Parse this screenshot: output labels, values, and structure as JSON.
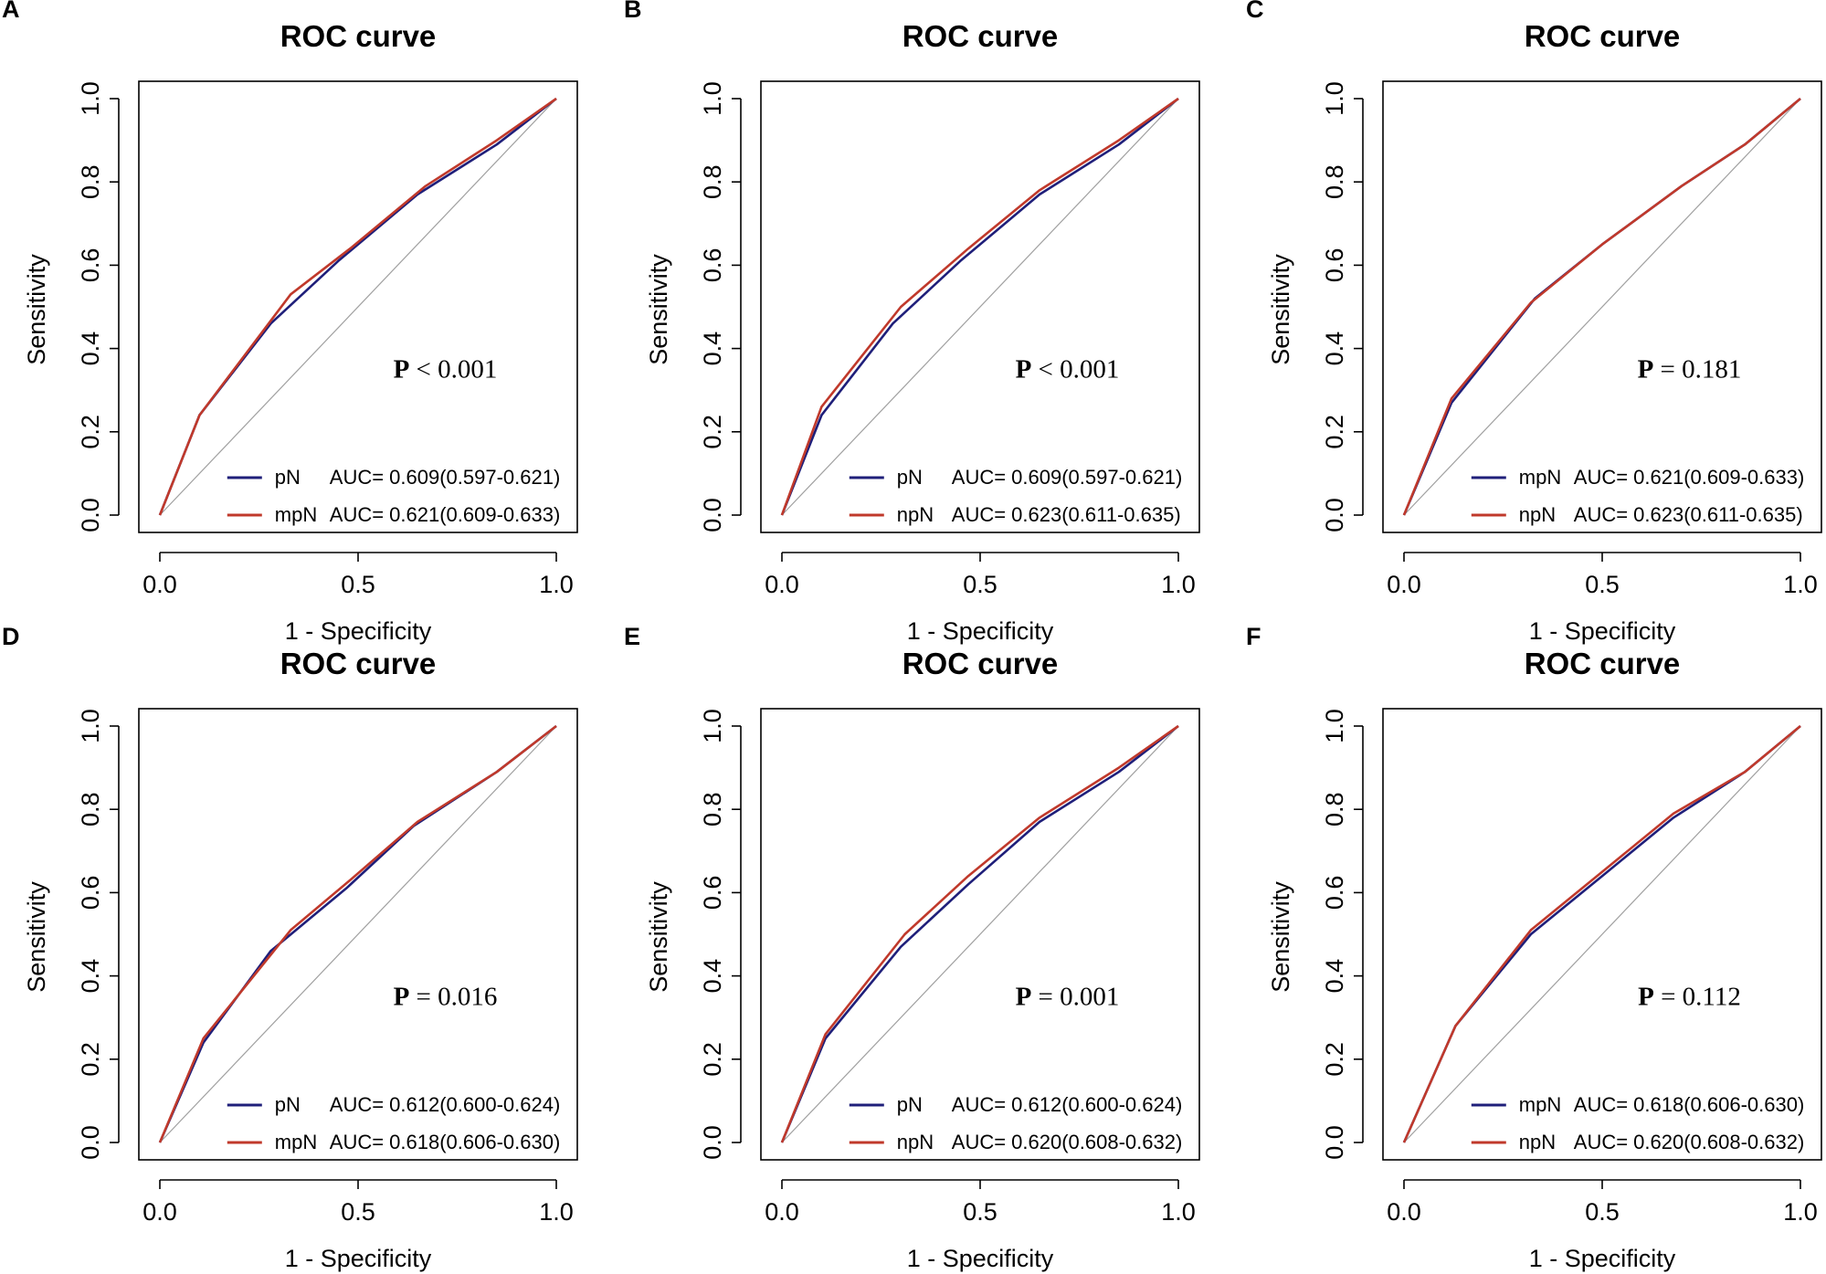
{
  "chart_data": [
    {
      "panel": "A",
      "type": "line",
      "title": "ROC curve",
      "xlabel": "1 - Specificity",
      "ylabel": "Sensitivity",
      "xlim": [
        0,
        1
      ],
      "ylim": [
        0,
        1
      ],
      "xticks": [
        "0.0",
        "0.5",
        "1.0"
      ],
      "yticks": [
        "0.0",
        "0.2",
        "0.4",
        "0.6",
        "0.8",
        "1.0"
      ],
      "p_label": "P",
      "p_value": "< 0.001",
      "series": [
        {
          "name": "pN",
          "auc": "AUC= 0.609(0.597-0.621)",
          "color": "#1f1f7a",
          "x": [
            0,
            0.1,
            0.28,
            0.45,
            0.65,
            0.85,
            1.0
          ],
          "y": [
            0,
            0.24,
            0.46,
            0.61,
            0.77,
            0.89,
            1.0
          ]
        },
        {
          "name": "mpN",
          "auc": "AUC= 0.621(0.609-0.633)",
          "color": "#c0392b",
          "x": [
            0,
            0.1,
            0.33,
            0.48,
            0.67,
            0.85,
            1.0
          ],
          "y": [
            0,
            0.24,
            0.53,
            0.64,
            0.79,
            0.9,
            1.0
          ]
        }
      ]
    },
    {
      "panel": "B",
      "type": "line",
      "title": "ROC curve",
      "xlabel": "1 - Specificity",
      "ylabel": "Sensitivity",
      "xlim": [
        0,
        1
      ],
      "ylim": [
        0,
        1
      ],
      "xticks": [
        "0.0",
        "0.5",
        "1.0"
      ],
      "yticks": [
        "0.0",
        "0.2",
        "0.4",
        "0.6",
        "0.8",
        "1.0"
      ],
      "p_label": "P",
      "p_value": "< 0.001",
      "series": [
        {
          "name": "pN",
          "auc": "AUC= 0.609(0.597-0.621)",
          "color": "#1f1f7a",
          "x": [
            0,
            0.1,
            0.28,
            0.45,
            0.65,
            0.85,
            1.0
          ],
          "y": [
            0,
            0.24,
            0.46,
            0.61,
            0.77,
            0.89,
            1.0
          ]
        },
        {
          "name": "npN",
          "auc": "AUC= 0.623(0.611-0.635)",
          "color": "#c0392b",
          "x": [
            0,
            0.1,
            0.3,
            0.47,
            0.65,
            0.85,
            1.0
          ],
          "y": [
            0,
            0.26,
            0.5,
            0.64,
            0.78,
            0.9,
            1.0
          ]
        }
      ]
    },
    {
      "panel": "C",
      "type": "line",
      "title": "ROC curve",
      "xlabel": "1 - Specificity",
      "ylabel": "Sensitivity",
      "xlim": [
        0,
        1
      ],
      "ylim": [
        0,
        1
      ],
      "xticks": [
        "0.0",
        "0.5",
        "1.0"
      ],
      "yticks": [
        "0.0",
        "0.2",
        "0.4",
        "0.6",
        "0.8",
        "1.0"
      ],
      "p_label": "P",
      "p_value": "= 0.181",
      "series": [
        {
          "name": "mpN",
          "auc": "AUC= 0.621(0.609-0.633)",
          "color": "#1f1f7a",
          "x": [
            0,
            0.12,
            0.33,
            0.5,
            0.7,
            0.86,
            1.0
          ],
          "y": [
            0,
            0.27,
            0.52,
            0.65,
            0.79,
            0.89,
            1.0
          ]
        },
        {
          "name": "npN",
          "auc": "AUC= 0.623(0.611-0.635)",
          "color": "#c0392b",
          "x": [
            0,
            0.12,
            0.32,
            0.5,
            0.7,
            0.86,
            1.0
          ],
          "y": [
            0,
            0.28,
            0.51,
            0.65,
            0.79,
            0.89,
            1.0
          ]
        }
      ]
    },
    {
      "panel": "D",
      "type": "line",
      "title": "ROC curve",
      "xlabel": "1 - Specificity",
      "ylabel": "Sensitivity",
      "xlim": [
        0,
        1
      ],
      "ylim": [
        0,
        1
      ],
      "xticks": [
        "0.0",
        "0.5",
        "1.0"
      ],
      "yticks": [
        "0.0",
        "0.2",
        "0.4",
        "0.6",
        "0.8",
        "1.0"
      ],
      "p_label": "P",
      "p_value": "= 0.016",
      "series": [
        {
          "name": "pN",
          "auc": "AUC= 0.612(0.600-0.624)",
          "color": "#1f1f7a",
          "x": [
            0,
            0.11,
            0.28,
            0.47,
            0.64,
            0.85,
            1.0
          ],
          "y": [
            0,
            0.24,
            0.46,
            0.61,
            0.76,
            0.89,
            1.0
          ]
        },
        {
          "name": "mpN",
          "auc": "AUC= 0.618(0.606-0.630)",
          "color": "#c0392b",
          "x": [
            0,
            0.11,
            0.33,
            0.48,
            0.65,
            0.85,
            1.0
          ],
          "y": [
            0,
            0.25,
            0.51,
            0.63,
            0.77,
            0.89,
            1.0
          ]
        }
      ]
    },
    {
      "panel": "E",
      "type": "line",
      "title": "ROC curve",
      "xlabel": "1 - Specificity",
      "ylabel": "Sensitivity",
      "xlim": [
        0,
        1
      ],
      "ylim": [
        0,
        1
      ],
      "xticks": [
        "0.0",
        "0.5",
        "1.0"
      ],
      "yticks": [
        "0.0",
        "0.2",
        "0.4",
        "0.6",
        "0.8",
        "1.0"
      ],
      "p_label": "P",
      "p_value": "= 0.001",
      "series": [
        {
          "name": "pN",
          "auc": "AUC= 0.612(0.600-0.624)",
          "color": "#1f1f7a",
          "x": [
            0,
            0.11,
            0.3,
            0.47,
            0.65,
            0.85,
            1.0
          ],
          "y": [
            0,
            0.25,
            0.47,
            0.62,
            0.77,
            0.89,
            1.0
          ]
        },
        {
          "name": "npN",
          "auc": "AUC= 0.620(0.608-0.632)",
          "color": "#c0392b",
          "x": [
            0,
            0.11,
            0.31,
            0.47,
            0.65,
            0.85,
            1.0
          ],
          "y": [
            0,
            0.26,
            0.5,
            0.64,
            0.78,
            0.9,
            1.0
          ]
        }
      ]
    },
    {
      "panel": "F",
      "type": "line",
      "title": "ROC curve",
      "xlabel": "1 - Specificity",
      "ylabel": "Sensitivity",
      "xlim": [
        0,
        1
      ],
      "ylim": [
        0,
        1
      ],
      "xticks": [
        "0.0",
        "0.5",
        "1.0"
      ],
      "yticks": [
        "0.0",
        "0.2",
        "0.4",
        "0.6",
        "0.8",
        "1.0"
      ],
      "p_label": "P",
      "p_value": "= 0.112",
      "series": [
        {
          "name": "mpN",
          "auc": "AUC= 0.618(0.606-0.630)",
          "color": "#1f1f7a",
          "x": [
            0,
            0.13,
            0.32,
            0.5,
            0.68,
            0.86,
            1.0
          ],
          "y": [
            0,
            0.28,
            0.5,
            0.64,
            0.78,
            0.89,
            1.0
          ]
        },
        {
          "name": "npN",
          "auc": "AUC= 0.620(0.608-0.632)",
          "color": "#c0392b",
          "x": [
            0,
            0.13,
            0.32,
            0.5,
            0.68,
            0.86,
            1.0
          ],
          "y": [
            0,
            0.28,
            0.51,
            0.65,
            0.79,
            0.89,
            1.0
          ]
        }
      ]
    }
  ]
}
